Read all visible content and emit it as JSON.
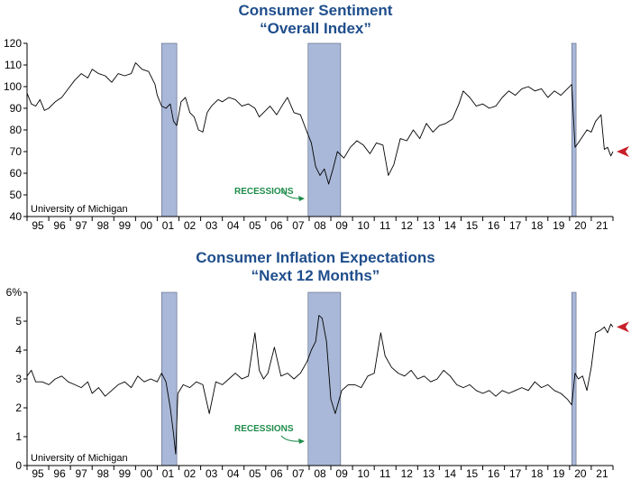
{
  "chart_data": [
    {
      "type": "line",
      "title": "Consumer Sentiment",
      "subtitle": "“Overall Index”",
      "source": "University of Michigan",
      "recession_label": "RECESSIONS",
      "ylim": [
        40,
        120
      ],
      "yticks": [
        "40",
        "50",
        "60",
        "70",
        "80",
        "90",
        "100",
        "110",
        "120"
      ],
      "ytick_values": [
        40,
        50,
        60,
        70,
        80,
        90,
        100,
        110,
        120
      ],
      "xlim": [
        1995.0,
        2022.0
      ],
      "xtick_labels": [
        "95",
        "96",
        "97",
        "98",
        "99",
        "00",
        "01",
        "02",
        "03",
        "04",
        "05",
        "06",
        "07",
        "08",
        "09",
        "10",
        "11",
        "12",
        "13",
        "14",
        "15",
        "16",
        "17",
        "18",
        "19",
        "20",
        "21"
      ],
      "recessions": [
        [
          2001.2,
          2001.9
        ],
        [
          2007.95,
          2009.45
        ],
        [
          2020.1,
          2020.3
        ]
      ],
      "latest_marker": 70.0,
      "colors": {
        "line": "#000000",
        "recession": "#a9b8d8",
        "marker": "#c8202a",
        "title": "#1f4e8c",
        "label": "#1e8c4a"
      },
      "series": [
        {
          "x": [
            1995.0,
            1995.2,
            1995.4,
            1995.6,
            1995.8,
            1996.0,
            1996.3,
            1996.6,
            1996.9,
            1997.2,
            1997.5,
            1997.8,
            1998.0,
            1998.3,
            1998.6,
            1998.9,
            1999.2,
            1999.5,
            1999.8,
            2000.0,
            2000.3,
            2000.6,
            2000.9,
            2001.0,
            2001.2,
            2001.4,
            2001.6,
            2001.75,
            2001.9,
            2002.1,
            2002.3,
            2002.5,
            2002.7,
            2002.9,
            2003.1,
            2003.3,
            2003.5,
            2003.8,
            2004.0,
            2004.3,
            2004.6,
            2004.9,
            2005.2,
            2005.5,
            2005.7,
            2005.9,
            2006.2,
            2006.5,
            2006.8,
            2007.0,
            2007.3,
            2007.6,
            2007.9,
            2008.1,
            2008.3,
            2008.5,
            2008.7,
            2008.9,
            2009.1,
            2009.3,
            2009.6,
            2009.9,
            2010.2,
            2010.5,
            2010.8,
            2011.1,
            2011.4,
            2011.65,
            2011.9,
            2012.2,
            2012.5,
            2012.8,
            2013.1,
            2013.4,
            2013.7,
            2014.0,
            2014.3,
            2014.6,
            2014.9,
            2015.1,
            2015.4,
            2015.7,
            2016.0,
            2016.3,
            2016.6,
            2016.9,
            2017.2,
            2017.5,
            2017.8,
            2018.1,
            2018.4,
            2018.7,
            2019.0,
            2019.3,
            2019.6,
            2019.9,
            2020.1,
            2020.25,
            2020.4,
            2020.6,
            2020.8,
            2021.0,
            2021.2,
            2021.45,
            2021.6,
            2021.75,
            2021.9,
            2022.0
          ],
          "y": [
            97,
            92,
            91,
            94,
            89,
            90,
            93,
            95,
            99,
            103,
            106,
            104,
            108,
            106,
            105,
            102,
            106,
            105,
            106,
            111,
            108,
            107,
            101,
            96,
            91,
            90,
            92,
            84,
            82,
            93,
            95,
            88,
            86,
            80,
            79,
            88,
            91,
            94,
            93,
            95,
            94,
            91,
            92,
            90,
            86,
            88,
            91,
            87,
            92,
            95,
            88,
            87,
            79,
            74,
            63,
            59,
            62,
            55,
            62,
            70,
            67,
            72,
            75,
            73,
            69,
            74,
            73,
            59,
            64,
            76,
            75,
            80,
            76,
            83,
            79,
            82,
            83,
            85,
            92,
            98,
            95,
            91,
            92,
            90,
            91,
            95,
            98,
            96,
            99,
            100,
            98,
            99,
            95,
            98,
            96,
            99,
            101,
            72,
            74,
            77,
            80,
            79,
            84,
            87,
            71,
            72,
            68,
            70
          ]
        }
      ]
    },
    {
      "type": "line",
      "title": "Consumer Inflation Expectations",
      "subtitle": "“Next 12 Months”",
      "source": "University of Michigan",
      "recession_label": "RECESSIONS",
      "ylim": [
        0,
        6
      ],
      "yticks": [
        "0",
        "1",
        "2",
        "3",
        "4",
        "5",
        "6%"
      ],
      "ytick_values": [
        0,
        1,
        2,
        3,
        4,
        5,
        6
      ],
      "xlim": [
        1995.0,
        2022.0
      ],
      "xtick_labels": [
        "95",
        "96",
        "97",
        "98",
        "99",
        "00",
        "01",
        "02",
        "03",
        "04",
        "05",
        "06",
        "07",
        "08",
        "09",
        "10",
        "11",
        "12",
        "13",
        "14",
        "15",
        "16",
        "17",
        "18",
        "19",
        "20",
        "21"
      ],
      "recessions": [
        [
          2001.2,
          2001.9
        ],
        [
          2007.95,
          2009.45
        ],
        [
          2020.1,
          2020.3
        ]
      ],
      "latest_marker": 4.8,
      "colors": {
        "line": "#000000",
        "recession": "#a9b8d8",
        "marker": "#c8202a",
        "title": "#1f4e8c",
        "label": "#1e8c4a"
      },
      "series": [
        {
          "x": [
            1995.0,
            1995.2,
            1995.4,
            1995.7,
            1996.0,
            1996.3,
            1996.6,
            1996.9,
            1997.2,
            1997.5,
            1997.8,
            1998.0,
            1998.3,
            1998.6,
            1998.9,
            1999.2,
            1999.5,
            1999.8,
            2000.1,
            2000.4,
            2000.7,
            2001.0,
            2001.2,
            2001.4,
            2001.6,
            2001.75,
            2001.85,
            2001.95,
            2002.2,
            2002.5,
            2002.8,
            2003.1,
            2003.4,
            2003.7,
            2004.0,
            2004.3,
            2004.6,
            2004.9,
            2005.2,
            2005.5,
            2005.7,
            2005.9,
            2006.1,
            2006.4,
            2006.7,
            2007.0,
            2007.3,
            2007.6,
            2007.9,
            2008.1,
            2008.3,
            2008.45,
            2008.6,
            2008.8,
            2009.0,
            2009.2,
            2009.5,
            2009.8,
            2010.1,
            2010.4,
            2010.7,
            2011.0,
            2011.3,
            2011.5,
            2011.8,
            2012.1,
            2012.4,
            2012.7,
            2013.0,
            2013.3,
            2013.6,
            2013.9,
            2014.2,
            2014.5,
            2014.8,
            2015.1,
            2015.4,
            2015.7,
            2016.0,
            2016.3,
            2016.6,
            2016.9,
            2017.2,
            2017.5,
            2017.8,
            2018.1,
            2018.4,
            2018.7,
            2019.0,
            2019.3,
            2019.6,
            2019.9,
            2020.1,
            2020.25,
            2020.4,
            2020.6,
            2020.8,
            2021.0,
            2021.2,
            2021.45,
            2021.6,
            2021.75,
            2021.9,
            2022.0
          ],
          "y": [
            3.1,
            3.3,
            2.9,
            2.9,
            2.8,
            3.0,
            3.1,
            2.9,
            2.8,
            2.7,
            2.9,
            2.5,
            2.7,
            2.4,
            2.6,
            2.8,
            2.9,
            2.7,
            3.1,
            2.9,
            3.0,
            2.9,
            3.2,
            2.9,
            2.0,
            1.1,
            0.4,
            2.5,
            2.8,
            2.7,
            2.9,
            2.8,
            1.8,
            2.9,
            2.8,
            3.0,
            3.2,
            3.0,
            3.1,
            4.6,
            3.3,
            3.0,
            3.2,
            4.1,
            3.1,
            3.2,
            3.0,
            3.2,
            3.6,
            4.0,
            4.3,
            5.2,
            5.1,
            4.3,
            2.3,
            1.8,
            2.6,
            2.8,
            2.8,
            2.7,
            3.1,
            3.2,
            4.6,
            3.8,
            3.4,
            3.2,
            3.1,
            3.3,
            3.0,
            3.1,
            2.9,
            3.0,
            3.3,
            3.1,
            2.8,
            2.7,
            2.8,
            2.6,
            2.5,
            2.6,
            2.4,
            2.6,
            2.5,
            2.6,
            2.7,
            2.6,
            2.9,
            2.7,
            2.8,
            2.6,
            2.5,
            2.3,
            2.1,
            3.2,
            3.0,
            3.1,
            2.6,
            3.4,
            4.6,
            4.7,
            4.8,
            4.6,
            4.9,
            4.8
          ]
        }
      ]
    }
  ]
}
